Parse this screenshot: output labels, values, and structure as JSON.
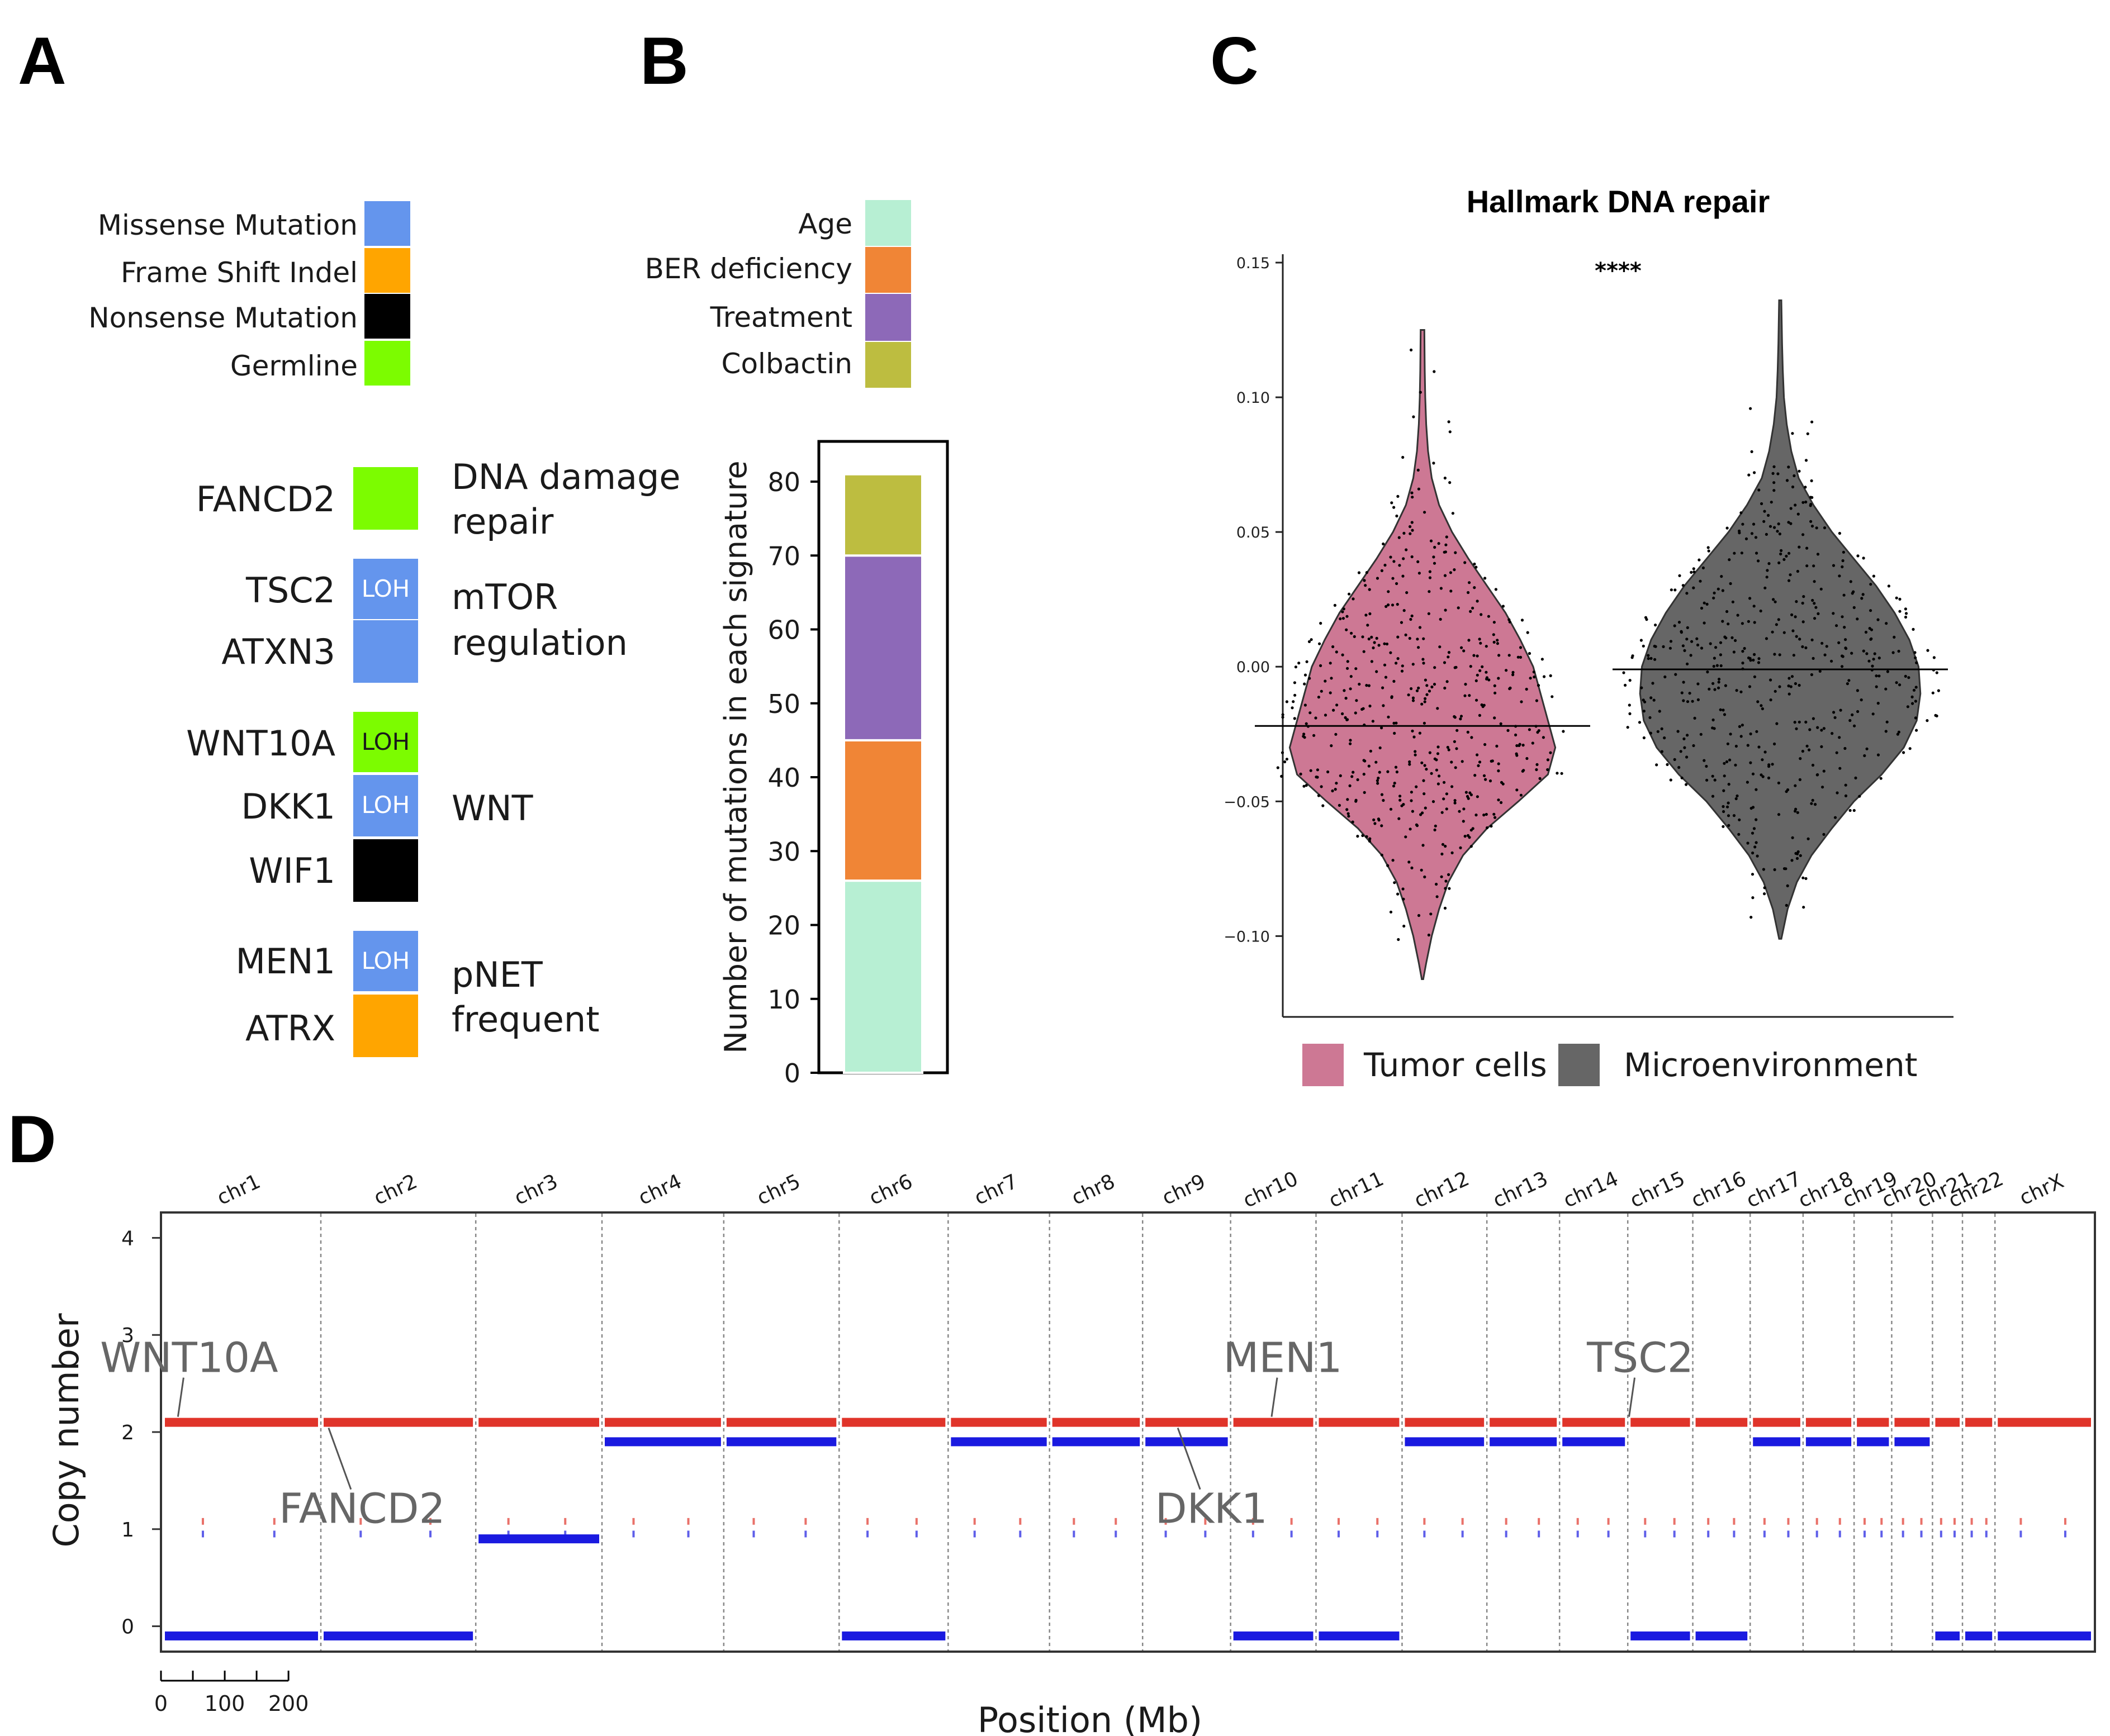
{
  "panels": {
    "a": "A",
    "b": "B",
    "c": "C",
    "d": "D"
  },
  "colors": {
    "missense": "#6495ED",
    "frameshift": "#FFA500",
    "nonsense": "#000000",
    "germline": "#7CFC00",
    "age": "#B7EFD3",
    "ber": "#F08536",
    "treatment": "#8D69B8",
    "colbactin": "#BDBD40",
    "tumor": "#CD7894",
    "micro": "#666666",
    "cn_red": "#E0342A",
    "cn_blue": "#1A1AE0"
  },
  "panel_a": {
    "legend": [
      {
        "label": "Missense Mutation",
        "color": "#6495ED"
      },
      {
        "label": "Frame Shift Indel",
        "color": "#FFA500"
      },
      {
        "label": "Nonsense Mutation",
        "color": "#000000"
      },
      {
        "label": "Germline",
        "color": "#7CFC00"
      }
    ],
    "genes": [
      {
        "name": "FANCD2",
        "color": "#7CFC00",
        "loh": ""
      },
      {
        "name": "TSC2",
        "color": "#6495ED",
        "loh": "LOH"
      },
      {
        "name": "ATXN3",
        "color": "#6495ED",
        "loh": ""
      },
      {
        "name": "WNT10A",
        "color": "#7CFC00",
        "loh": "LOH"
      },
      {
        "name": "DKK1",
        "color": "#6495ED",
        "loh": "LOH"
      },
      {
        "name": "WIF1",
        "color": "#000000",
        "loh": ""
      },
      {
        "name": "MEN1",
        "color": "#6495ED",
        "loh": "LOH"
      },
      {
        "name": "ATRX",
        "color": "#FFA500",
        "loh": ""
      }
    ],
    "pathways": [
      {
        "line1": "DNA damage",
        "line2": "repair"
      },
      {
        "line1": "mTOR",
        "line2": "regulation"
      },
      {
        "line1": "WNT",
        "line2": ""
      },
      {
        "line1": "pNET",
        "line2": "frequent"
      }
    ]
  },
  "chart_data": [
    {
      "id": "B",
      "type": "bar",
      "stacked": true,
      "legend": [
        {
          "label": "Age",
          "color": "#B7EFD3"
        },
        {
          "label": "BER deficiency",
          "color": "#F08536"
        },
        {
          "label": "Treatment",
          "color": "#8D69B8"
        },
        {
          "label": "Colbactin",
          "color": "#BDBD40"
        }
      ],
      "series": [
        {
          "name": "Age",
          "values": [
            26
          ]
        },
        {
          "name": "BER deficiency",
          "values": [
            19
          ]
        },
        {
          "name": "Treatment",
          "values": [
            25
          ]
        },
        {
          "name": "Colbactin",
          "values": [
            11
          ]
        }
      ],
      "ylabel": "Number of mutations in each signature",
      "ylim": [
        0,
        85
      ],
      "yticks": [
        0,
        10,
        20,
        30,
        40,
        50,
        60,
        70,
        80
      ]
    },
    {
      "id": "C",
      "type": "violin",
      "title": "Hallmark DNA repair",
      "significance": "****",
      "groups": [
        {
          "name": "Tumor cells",
          "color": "#CD7894",
          "median": -0.022,
          "min": -0.116,
          "max": 0.125,
          "profile": [
            [
              -0.116,
              0.004
            ],
            [
              -0.11,
              0.02
            ],
            [
              -0.1,
              0.05
            ],
            [
              -0.09,
              0.09
            ],
            [
              -0.08,
              0.14
            ],
            [
              -0.07,
              0.22
            ],
            [
              -0.06,
              0.35
            ],
            [
              -0.05,
              0.52
            ],
            [
              -0.04,
              0.68
            ],
            [
              -0.03,
              0.72
            ],
            [
              -0.02,
              0.68
            ],
            [
              -0.01,
              0.64
            ],
            [
              0.0,
              0.6
            ],
            [
              0.01,
              0.53
            ],
            [
              0.02,
              0.45
            ],
            [
              0.03,
              0.35
            ],
            [
              0.04,
              0.25
            ],
            [
              0.05,
              0.16
            ],
            [
              0.06,
              0.09
            ],
            [
              0.07,
              0.05
            ],
            [
              0.08,
              0.03
            ],
            [
              0.09,
              0.02
            ],
            [
              0.1,
              0.015
            ],
            [
              0.11,
              0.012
            ],
            [
              0.125,
              0.01
            ]
          ]
        },
        {
          "name": "Microenvironment",
          "color": "#666666",
          "median": -0.001,
          "min": -0.101,
          "max": 0.136,
          "profile": [
            [
              -0.101,
              0.006
            ],
            [
              -0.09,
              0.04
            ],
            [
              -0.08,
              0.09
            ],
            [
              -0.07,
              0.17
            ],
            [
              -0.06,
              0.28
            ],
            [
              -0.05,
              0.4
            ],
            [
              -0.04,
              0.55
            ],
            [
              -0.03,
              0.67
            ],
            [
              -0.02,
              0.74
            ],
            [
              -0.01,
              0.76
            ],
            [
              0.0,
              0.75
            ],
            [
              0.01,
              0.7
            ],
            [
              0.02,
              0.62
            ],
            [
              0.03,
              0.52
            ],
            [
              0.04,
              0.4
            ],
            [
              0.05,
              0.28
            ],
            [
              0.06,
              0.18
            ],
            [
              0.07,
              0.1
            ],
            [
              0.08,
              0.06
            ],
            [
              0.09,
              0.035
            ],
            [
              0.1,
              0.02
            ],
            [
              0.11,
              0.014
            ],
            [
              0.12,
              0.01
            ],
            [
              0.136,
              0.006
            ]
          ]
        }
      ],
      "ylim": [
        -0.13,
        0.15
      ],
      "yticks": [
        {
          "v": 0.15,
          "label": "0.15"
        },
        {
          "v": 0.1,
          "label": "0.10"
        },
        {
          "v": 0.05,
          "label": "0.05"
        },
        {
          "v": 0.0,
          "label": "0.00"
        },
        {
          "v": -0.05,
          "label": "−0.05"
        },
        {
          "v": -0.1,
          "label": "−0.10"
        }
      ]
    },
    {
      "id": "D",
      "type": "scatter",
      "xlabel": "Position (Mb)",
      "ylabel": "Copy number",
      "ylim": [
        -0.25,
        4.25
      ],
      "yticks": [
        0,
        1,
        2,
        3,
        4
      ],
      "scale_bar": [
        "0",
        "100",
        "200"
      ],
      "chromosomes": [
        {
          "name": "chr1",
          "len": 249
        },
        {
          "name": "chr2",
          "len": 243
        },
        {
          "name": "chr3",
          "len": 198
        },
        {
          "name": "chr4",
          "len": 191
        },
        {
          "name": "chr5",
          "len": 181
        },
        {
          "name": "chr6",
          "len": 171
        },
        {
          "name": "chr7",
          "len": 159
        },
        {
          "name": "chr8",
          "len": 146
        },
        {
          "name": "chr9",
          "len": 138
        },
        {
          "name": "chr10",
          "len": 134
        },
        {
          "name": "chr11",
          "len": 135
        },
        {
          "name": "chr12",
          "len": 133
        },
        {
          "name": "chr13",
          "len": 114
        },
        {
          "name": "chr14",
          "len": 107
        },
        {
          "name": "chr15",
          "len": 102
        },
        {
          "name": "chr16",
          "len": 90
        },
        {
          "name": "chr17",
          "len": 83
        },
        {
          "name": "chr18",
          "len": 80
        },
        {
          "name": "chr19",
          "len": 59
        },
        {
          "name": "chr20",
          "len": 64
        },
        {
          "name": "chr21",
          "len": 47
        },
        {
          "name": "chr22",
          "len": 51
        },
        {
          "name": "chrX",
          "len": 155
        }
      ],
      "major": [
        2.1,
        2.1,
        2.1,
        2.1,
        2.1,
        2.1,
        2.1,
        2.1,
        2.1,
        2.1,
        2.1,
        2.1,
        2.1,
        2.1,
        2.1,
        2.1,
        2.1,
        2.1,
        2.1,
        2.1,
        2.1,
        2.1,
        2.1
      ],
      "minor": [
        -0.1,
        -0.1,
        0.9,
        1.9,
        1.9,
        -0.1,
        1.9,
        1.9,
        1.9,
        -0.1,
        -0.1,
        1.9,
        1.9,
        1.9,
        -0.1,
        -0.1,
        1.9,
        1.9,
        1.9,
        1.9,
        -0.1,
        -0.1,
        -0.1
      ],
      "annotations": [
        {
          "gene": "WNT10A",
          "chr": 1,
          "pos": 0.1,
          "cn": 2.1,
          "side": "above"
        },
        {
          "gene": "FANCD2",
          "chr": 2,
          "pos": 0.05,
          "cn": 2.1,
          "side": "below"
        },
        {
          "gene": "MEN1",
          "chr": 10,
          "pos": 0.48,
          "cn": 2.1,
          "side": "above"
        },
        {
          "gene": "DKK1",
          "chr": 9,
          "pos": 0.4,
          "cn": 2.1,
          "side": "below"
        },
        {
          "gene": "TSC2",
          "chr": 15,
          "pos": 0.02,
          "cn": 2.1,
          "side": "above"
        }
      ]
    }
  ]
}
